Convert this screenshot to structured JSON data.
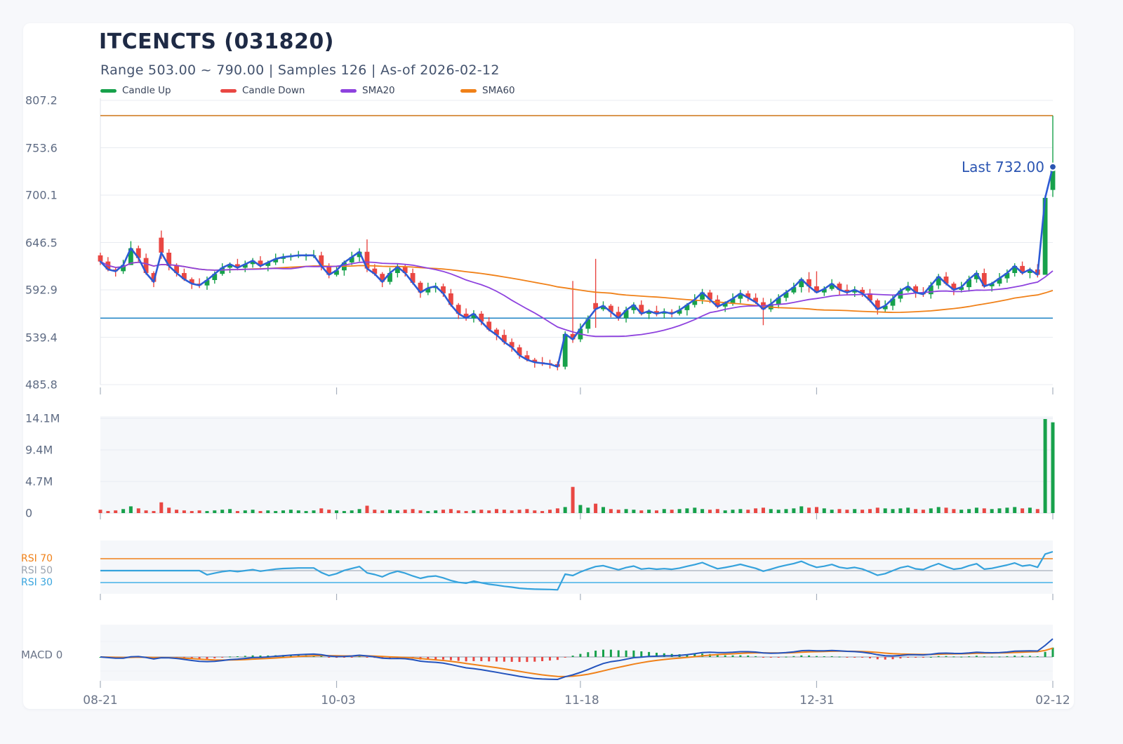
{
  "header": {
    "title": "ITCENCTS (031820)",
    "subtitle": "Range 503.00 ~ 790.00 | Samples 126 | As-of 2026-02-12"
  },
  "legend": [
    {
      "label": "Candle Up",
      "color": "#17a14b"
    },
    {
      "label": "Candle Down",
      "color": "#e94743"
    },
    {
      "label": "SMA20",
      "color": "#8e42de"
    },
    {
      "label": "SMA60",
      "color": "#f08119"
    }
  ],
  "annotations": {
    "last_label": "Last 732.00",
    "last_value": 732.0
  },
  "price_axis": {
    "labels": [
      "807.2",
      "753.6",
      "700.1",
      "646.5",
      "592.9",
      "539.4",
      "485.8"
    ]
  },
  "volume_axis": {
    "labels": [
      "14.1M",
      "9.4M",
      "4.7M",
      "0"
    ]
  },
  "rsi_axis": {
    "labels": [
      {
        "text": "RSI 70",
        "color": "#f08119"
      },
      {
        "text": "RSI 50",
        "color": "#9aa3b0"
      },
      {
        "text": "RSI 30",
        "color": "#3aa5de"
      }
    ]
  },
  "macd_axis": {
    "label": "MACD 0"
  },
  "x_axis": {
    "labels": [
      "08-21",
      "10-03",
      "11-18",
      "12-31",
      "02-12"
    ]
  },
  "chart_data": {
    "type": "candlestick",
    "symbol": "ITCENCTS",
    "code": "031820",
    "samples": 126,
    "price_range": [
      503.0,
      790.0
    ],
    "as_of": "2026-02-12",
    "last_close": 732.0,
    "price_ticks": [
      807.2,
      753.6,
      700.1,
      646.5,
      592.9,
      539.4,
      485.8
    ],
    "volume_ticks_m": [
      14.1,
      9.4,
      4.7,
      0
    ],
    "rsi_levels": [
      70,
      50,
      30
    ],
    "x_tick_indices": [
      0,
      31,
      63,
      94,
      125
    ],
    "level_lines": [
      {
        "value": 790,
        "color": "#d07c24"
      },
      {
        "value": 561,
        "color": "#1f83c4"
      }
    ],
    "close": [
      625,
      616,
      614,
      621,
      640,
      629,
      612,
      602,
      635,
      620,
      612,
      605,
      600,
      598,
      604,
      611,
      618,
      622,
      618,
      622,
      626,
      620,
      624,
      628,
      630,
      631,
      632,
      632,
      632,
      620,
      610,
      615,
      624,
      630,
      636,
      617,
      611,
      602,
      612,
      619,
      612,
      601,
      590,
      595,
      597,
      589,
      576,
      566,
      561,
      566,
      557,
      548,
      542,
      534,
      528,
      519,
      514,
      511,
      510,
      509,
      506,
      543,
      537,
      549,
      560,
      571,
      575,
      568,
      561,
      570,
      576,
      566,
      569,
      566,
      568,
      566,
      570,
      576,
      582,
      590,
      582,
      574,
      578,
      583,
      589,
      584,
      579,
      571,
      577,
      584,
      590,
      596,
      605,
      597,
      590,
      594,
      600,
      593,
      590,
      593,
      589,
      581,
      571,
      575,
      583,
      592,
      597,
      590,
      588,
      598,
      608,
      600,
      593,
      596,
      605,
      612,
      597,
      600,
      606,
      612,
      620,
      612,
      616,
      610,
      697,
      732
    ],
    "open_specials": {
      "0": 632,
      "8": 652,
      "65": 578,
      "125": 706
    },
    "wick_up_pattern": [
      3,
      5,
      2,
      6,
      4
    ],
    "wick_down_pattern": [
      4,
      2,
      6,
      3,
      5
    ],
    "wick_specials": {
      "4": [
        648,
        626
      ],
      "8": [
        660,
        628
      ],
      "35": [
        650,
        613
      ],
      "61": [
        546,
        503
      ],
      "62": [
        603,
        533
      ],
      "65": [
        628,
        550
      ],
      "87": [
        584,
        553
      ],
      "93": [
        613,
        590
      ],
      "94": [
        614,
        592
      ],
      "124": [
        700,
        610
      ],
      "125": [
        790,
        698
      ]
    },
    "volume_m": [
      0.5,
      0.3,
      0.4,
      0.6,
      1.0,
      0.7,
      0.4,
      0.3,
      1.6,
      0.8,
      0.5,
      0.4,
      0.3,
      0.4,
      0.3,
      0.4,
      0.5,
      0.6,
      0.3,
      0.4,
      0.5,
      0.3,
      0.4,
      0.3,
      0.4,
      0.5,
      0.4,
      0.3,
      0.4,
      0.7,
      0.5,
      0.4,
      0.3,
      0.4,
      0.6,
      1.1,
      0.5,
      0.4,
      0.5,
      0.4,
      0.5,
      0.6,
      0.4,
      0.3,
      0.4,
      0.5,
      0.6,
      0.4,
      0.3,
      0.4,
      0.5,
      0.4,
      0.6,
      0.5,
      0.4,
      0.5,
      0.6,
      0.4,
      0.3,
      0.5,
      0.7,
      0.9,
      3.9,
      1.2,
      0.8,
      1.4,
      0.9,
      0.6,
      0.5,
      0.6,
      0.5,
      0.4,
      0.5,
      0.4,
      0.6,
      0.5,
      0.6,
      0.7,
      0.8,
      0.6,
      0.5,
      0.6,
      0.4,
      0.5,
      0.6,
      0.5,
      0.7,
      0.8,
      0.6,
      0.5,
      0.6,
      0.7,
      1.0,
      0.8,
      0.9,
      0.7,
      0.5,
      0.6,
      0.5,
      0.6,
      0.5,
      0.6,
      0.8,
      0.7,
      0.6,
      0.7,
      0.8,
      0.6,
      0.5,
      0.7,
      0.9,
      0.8,
      0.6,
      0.5,
      0.6,
      0.8,
      0.7,
      0.6,
      0.7,
      0.8,
      0.9,
      0.7,
      0.8,
      0.6,
      14.0,
      13.5
    ],
    "indicators": {
      "sma_periods": [
        20,
        60
      ],
      "rsi_period": 14,
      "macd_params": [
        12,
        26,
        9
      ]
    },
    "colors": {
      "up": "#17a14b",
      "down": "#e94743",
      "close_line": "#2d5bd5",
      "sma20": "#8e42de",
      "sma60": "#f08119",
      "rsi_line": "#35a2dc",
      "rsi70": "#f08119",
      "rsi50": "#a8afbc",
      "rsi30": "#45b1e8",
      "macd_line": "#2353bd",
      "macd_signal": "#f08119",
      "hist_up": "#17a14b",
      "hist_down": "#e94743",
      "last_accent": "#2b55b2",
      "grid": "#e8ebf1",
      "grid_faint": "#eef1f6",
      "panel_fill": "#f5f7fa",
      "tick": "#a7b0be",
      "zero_line": "#a8afbc",
      "spine": "#dfe3ea"
    }
  }
}
